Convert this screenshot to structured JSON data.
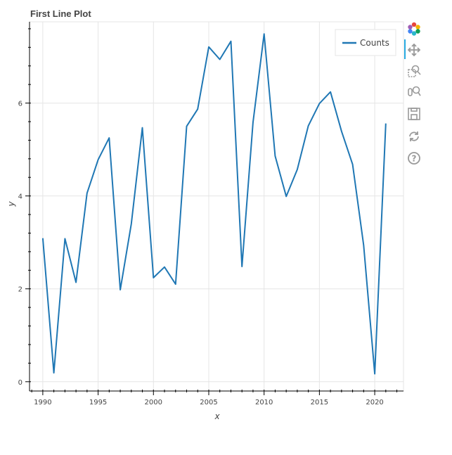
{
  "chart_data": {
    "type": "line",
    "title": "First Line Plot",
    "xlabel": "x",
    "ylabel": "y",
    "xlim": [
      1988.8,
      2022.6
    ],
    "ylim": [
      -0.2,
      7.75
    ],
    "xticks": [
      1990,
      1995,
      2000,
      2005,
      2010,
      2015,
      2020
    ],
    "yticks": [
      0,
      2,
      4,
      6
    ],
    "grid": true,
    "legend": "top-right",
    "series": [
      {
        "name": "Counts",
        "color": "#1f77b4",
        "x": [
          1990,
          1991,
          1992,
          1993,
          1994,
          1995,
          1996,
          1997,
          1998,
          1999,
          2000,
          2001,
          2002,
          2003,
          2004,
          2005,
          2006,
          2007,
          2008,
          2009,
          2010,
          2011,
          2012,
          2013,
          2014,
          2015,
          2016,
          2017,
          2018,
          2019,
          2020,
          2021
        ],
        "y": [
          3.09,
          0.19,
          3.08,
          2.14,
          4.06,
          4.78,
          5.25,
          1.98,
          3.4,
          5.47,
          2.24,
          2.47,
          2.1,
          5.5,
          5.87,
          7.21,
          6.94,
          7.33,
          2.48,
          5.58,
          7.49,
          4.86,
          3.99,
          4.57,
          5.51,
          5.99,
          6.24,
          5.39,
          4.68,
          2.94,
          0.17,
          5.56
        ]
      }
    ]
  },
  "toolbar": {
    "tools": [
      "bokeh-logo-icon",
      "pan-icon",
      "box-zoom-icon",
      "wheel-zoom-icon",
      "save-icon",
      "reset-icon",
      "help-icon"
    ]
  }
}
